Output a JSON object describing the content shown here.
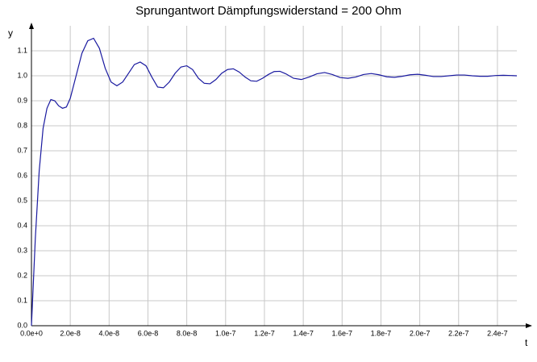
{
  "chart_data": {
    "type": "line",
    "title": "Sprungantwort Dämpfungswiderstand = 200 Ohm",
    "xlabel": "t",
    "ylabel": "y",
    "x": [
      0,
      2e-09,
      4e-09,
      6e-09,
      8e-09,
      1e-08,
      1.2e-08,
      1.4e-08,
      1.6e-08,
      1.8e-08,
      2e-08,
      2.3e-08,
      2.6e-08,
      2.9e-08,
      3.2e-08,
      3.5e-08,
      3.8e-08,
      4.1e-08,
      4.4e-08,
      4.7e-08,
      5e-08,
      5.3e-08,
      5.6e-08,
      5.9e-08,
      6.2e-08,
      6.5e-08,
      6.8e-08,
      7.1e-08,
      7.4e-08,
      7.7e-08,
      8e-08,
      8.3e-08,
      8.6e-08,
      8.9e-08,
      9.2e-08,
      9.5e-08,
      9.8e-08,
      1.01e-07,
      1.04e-07,
      1.07e-07,
      1.1e-07,
      1.13e-07,
      1.16e-07,
      1.19e-07,
      1.22e-07,
      1.25e-07,
      1.28e-07,
      1.31e-07,
      1.35e-07,
      1.39e-07,
      1.43e-07,
      1.47e-07,
      1.51e-07,
      1.55e-07,
      1.59e-07,
      1.63e-07,
      1.67e-07,
      1.71e-07,
      1.75e-07,
      1.79e-07,
      1.83e-07,
      1.87e-07,
      1.91e-07,
      1.95e-07,
      1.99e-07,
      2.03e-07,
      2.07e-07,
      2.11e-07,
      2.15e-07,
      2.19e-07,
      2.23e-07,
      2.27e-07,
      2.31e-07,
      2.35e-07,
      2.39e-07,
      2.43e-07,
      2.47e-07,
      2.5e-07
    ],
    "series": [
      {
        "name": "y",
        "color": "#1a1aa0",
        "values": [
          0,
          0.35,
          0.62,
          0.79,
          0.87,
          0.905,
          0.9,
          0.88,
          0.87,
          0.875,
          0.91,
          1.0,
          1.09,
          1.14,
          1.15,
          1.11,
          1.03,
          0.975,
          0.96,
          0.975,
          1.01,
          1.045,
          1.055,
          1.04,
          0.995,
          0.955,
          0.952,
          0.975,
          1.01,
          1.035,
          1.04,
          1.025,
          0.99,
          0.97,
          0.968,
          0.985,
          1.01,
          1.025,
          1.028,
          1.015,
          0.995,
          0.98,
          0.978,
          0.99,
          1.005,
          1.017,
          1.018,
          1.008,
          0.99,
          0.985,
          0.995,
          1.008,
          1.013,
          1.005,
          0.993,
          0.99,
          0.995,
          1.005,
          1.009,
          1.004,
          0.996,
          0.994,
          0.998,
          1.004,
          1.006,
          1.002,
          0.997,
          0.997,
          1.0,
          1.003,
          1.003,
          1.0,
          0.998,
          0.998,
          1.001,
          1.002,
          1.001,
          1.0
        ]
      }
    ],
    "xlim": [
      0,
      2.5e-07
    ],
    "ylim": [
      0,
      1.2
    ],
    "xticks": [
      {
        "value": 0,
        "label": "0.0e+0"
      },
      {
        "value": 2e-08,
        "label": "2.0e-8"
      },
      {
        "value": 4e-08,
        "label": "4.0e-8"
      },
      {
        "value": 6e-08,
        "label": "6.0e-8"
      },
      {
        "value": 8e-08,
        "label": "8.0e-8"
      },
      {
        "value": 1e-07,
        "label": "1.0e-7"
      },
      {
        "value": 1.2e-07,
        "label": "1.2e-7"
      },
      {
        "value": 1.4e-07,
        "label": "1.4e-7"
      },
      {
        "value": 1.6e-07,
        "label": "1.6e-7"
      },
      {
        "value": 1.8e-07,
        "label": "1.8e-7"
      },
      {
        "value": 2e-07,
        "label": "2.0e-7"
      },
      {
        "value": 2.2e-07,
        "label": "2.2e-7"
      },
      {
        "value": 2.4e-07,
        "label": "2.4e-7"
      }
    ],
    "yticks": [
      {
        "value": 0,
        "label": "0.0"
      },
      0.1,
      0.2,
      0.3,
      0.4,
      0.5,
      0.6,
      0.7,
      0.8,
      0.9,
      {
        "value": 1,
        "label": "1.0"
      },
      1.1
    ],
    "grid": true
  }
}
